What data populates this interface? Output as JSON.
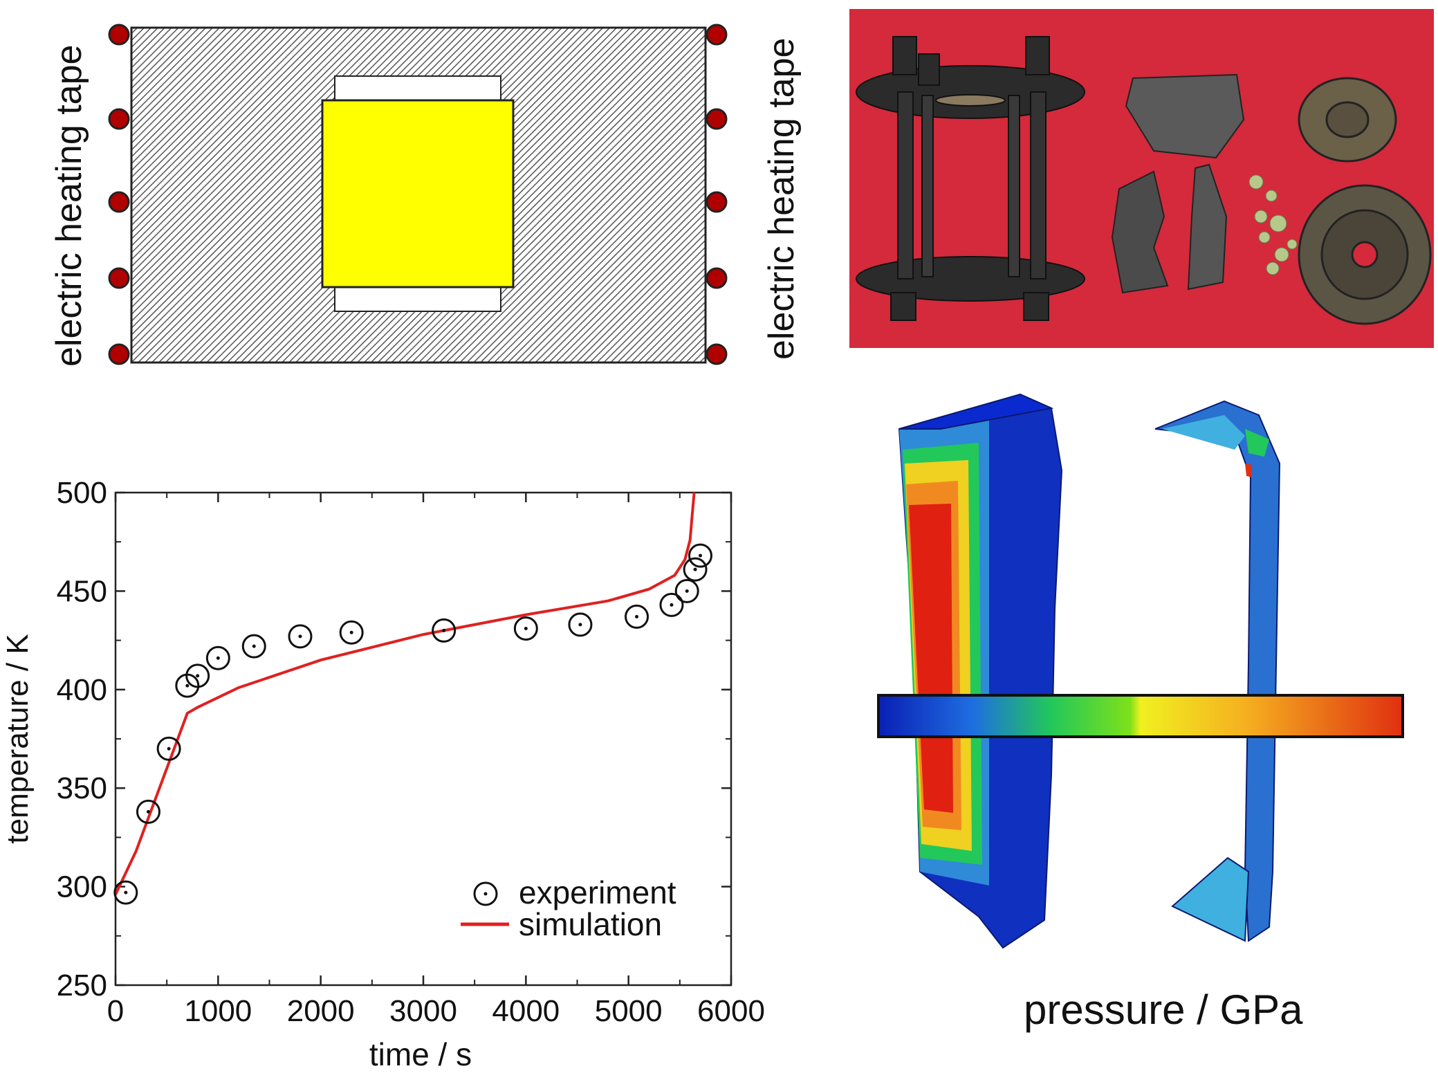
{
  "schematic": {
    "left_label": "electric heating tape",
    "right_label": "electric heating tape",
    "colors": {
      "housing_hatch": "#9a9a9a",
      "sample": "#ffff00",
      "heater_dots": "#b00000"
    }
  },
  "photo": {
    "colors": {
      "background": "#d42a3c"
    }
  },
  "fem": {
    "colorbar_label": "pressure / GPa",
    "colorbar_colors": [
      "#0a1fb5",
      "#1e6ee0",
      "#22c85a",
      "#7ee01a",
      "#f0f020",
      "#f5b020",
      "#e03010"
    ]
  },
  "chart_data": {
    "type": "scatter",
    "xlabel": "time / s",
    "ylabel": "temperature / K",
    "xlim": [
      0,
      6000
    ],
    "ylim": [
      250,
      500
    ],
    "xticks": [
      "0",
      "1000",
      "2000",
      "3000",
      "4000",
      "5000",
      "6000"
    ],
    "yticks": [
      "250",
      "300",
      "350",
      "400",
      "450",
      "500"
    ],
    "legend_position": "bottom-right",
    "series": [
      {
        "name": "experiment",
        "marker": "circle-dot",
        "color": "#111111",
        "points": [
          [
            100,
            297
          ],
          [
            320,
            338
          ],
          [
            520,
            370
          ],
          [
            700,
            402
          ],
          [
            800,
            407
          ],
          [
            1000,
            416
          ],
          [
            1350,
            422
          ],
          [
            1800,
            427
          ],
          [
            2300,
            429
          ],
          [
            3200,
            430
          ],
          [
            4000,
            431
          ],
          [
            4530,
            433
          ],
          [
            5080,
            437
          ],
          [
            5420,
            443
          ],
          [
            5570,
            450
          ],
          [
            5650,
            461
          ],
          [
            5700,
            468
          ]
        ]
      },
      {
        "name": "simulation",
        "marker": "line",
        "color": "#e02020",
        "points": [
          [
            0,
            296
          ],
          [
            200,
            318
          ],
          [
            400,
            346
          ],
          [
            600,
            374
          ],
          [
            700,
            388
          ],
          [
            800,
            391
          ],
          [
            1200,
            401
          ],
          [
            2000,
            415
          ],
          [
            3000,
            428
          ],
          [
            4000,
            438
          ],
          [
            4800,
            445
          ],
          [
            5200,
            451
          ],
          [
            5450,
            458
          ],
          [
            5550,
            466
          ],
          [
            5600,
            476
          ],
          [
            5620,
            488
          ],
          [
            5640,
            500
          ]
        ]
      }
    ]
  }
}
